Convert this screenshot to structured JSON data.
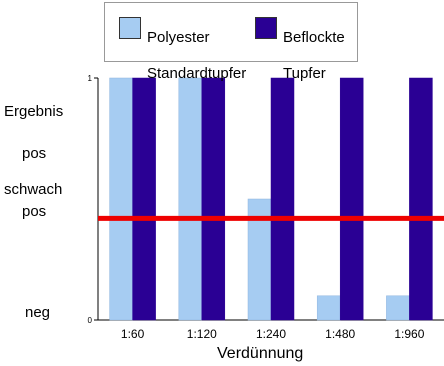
{
  "chart_data": {
    "type": "bar",
    "categories": [
      "1:60",
      "1:120",
      "1:240",
      "1:480",
      "1:960"
    ],
    "series": [
      {
        "name": "Polyester Standardtupfer",
        "color": "#a6ccf2",
        "values": [
          1.0,
          1.0,
          0.5,
          0.1,
          0.1
        ]
      },
      {
        "name": "Beflockte Tupfer",
        "color": "#2a0094",
        "values": [
          1.0,
          1.0,
          1.0,
          1.0,
          1.0
        ]
      }
    ],
    "legend": {
      "items": [
        {
          "line1": "Polyester",
          "line2": "Standardtupfer"
        },
        {
          "line1": "Beflockte",
          "line2": "Tupfer"
        }
      ],
      "placement": "top"
    },
    "ylim": [
      0,
      1
    ],
    "yticks": [
      "0",
      "1"
    ],
    "threshold": {
      "value": 0.42,
      "color": "#ee0000"
    },
    "ylabel_categories": [
      {
        "text": "Ergebnis",
        "value": 0.86
      },
      {
        "text": "pos",
        "value": 0.69
      },
      {
        "text": "schwach",
        "value": 0.53
      },
      {
        "text": "pos",
        "value": 0.45
      },
      {
        "text": "neg",
        "value": 0.02
      }
    ],
    "xlabel": "Verdünnung",
    "grid": false
  }
}
